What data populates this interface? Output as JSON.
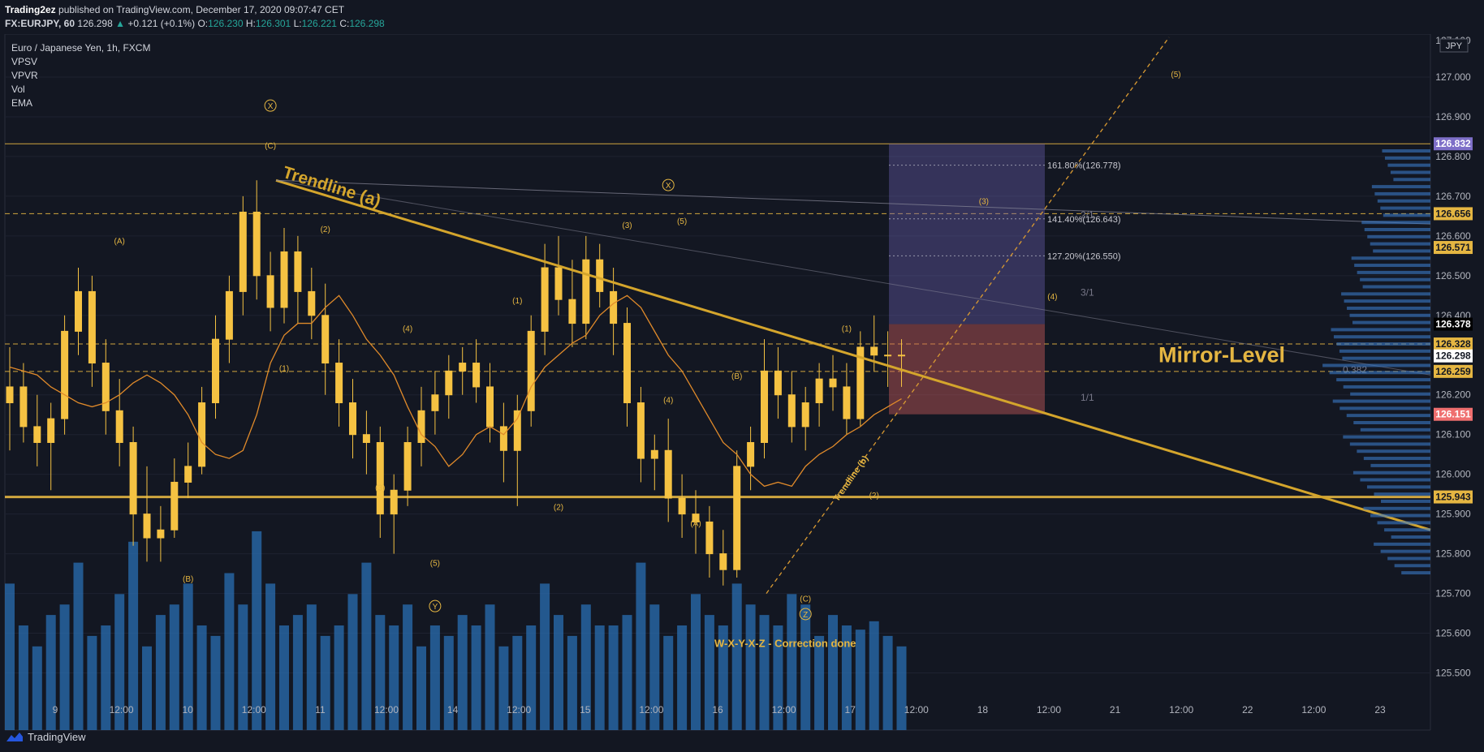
{
  "header": {
    "publisher": "Trading2ez",
    "published_text": "published on TradingView.com, December 17, 2020 09:07:47 CET",
    "symbol": "FX:EURJPY, 60",
    "last": "126.298",
    "change": "+0.121 (+0.1%)",
    "o_label": "O:",
    "o": "126.230",
    "h_label": "H:",
    "h": "126.301",
    "l_label": "L:",
    "l": "126.221",
    "c_label": "C:",
    "c": "126.298"
  },
  "legend": {
    "title": "Euro / Japanese Yen, 1h, FXCM",
    "indicators": [
      "VPSV",
      "VPVR",
      "Vol",
      "EMA"
    ]
  },
  "footer": {
    "brand": "TradingView"
  },
  "colors": {
    "background": "#131722",
    "candle": "#f5c242",
    "trendline": "#d4a52c",
    "volume": "#2a6fb3",
    "mirror": "#e5b642"
  },
  "chart_data": {
    "type": "candlestick",
    "currency": "JPY",
    "y_axis": {
      "ticks": [
        "127.000",
        "126.900",
        "126.800",
        "126.700",
        "126.600",
        "126.500",
        "126.400",
        "126.200",
        "126.100",
        "126.000",
        "125.900",
        "125.800",
        "125.700",
        "125.600",
        "125.500"
      ],
      "range": [
        125.45,
        127.1
      ],
      "top_partial_label": "127.100"
    },
    "x_axis": {
      "ticks": [
        "9",
        "12:00",
        "10",
        "12:00",
        "11",
        "12:00",
        "14",
        "12:00",
        "15",
        "12:00",
        "16",
        "12:00",
        "17",
        "12:00",
        "18",
        "12:00",
        "21",
        "12:00",
        "22",
        "12:00",
        "23"
      ]
    },
    "price_tags": [
      {
        "label": "126.832",
        "value": 126.832,
        "color": "#7e6fc8"
      },
      {
        "label": "126.656",
        "value": 126.656,
        "color": "#e5b642"
      },
      {
        "label": "126.571",
        "value": 126.571,
        "color": "#e5b642"
      },
      {
        "label": "126.378",
        "value": 126.378,
        "color": "#000000"
      },
      {
        "label": "126.328",
        "value": 126.328,
        "color": "#e5b642"
      },
      {
        "label": "126.298",
        "value": 126.298,
        "color": "#ffffff"
      },
      {
        "label": "126.259",
        "value": 126.259,
        "color": "#e5b642"
      },
      {
        "label": "126.151",
        "value": 126.151,
        "color": "#ef6f6f"
      },
      {
        "label": "125.943",
        "value": 125.943,
        "color": "#e5b642"
      }
    ],
    "horizontal_levels": [
      126.832,
      126.656,
      126.328,
      126.259,
      125.943
    ],
    "fib_levels": [
      {
        "label": "161.80%(126.778)",
        "value": 126.778
      },
      {
        "label": "141.40%(126.643)",
        "value": 126.643
      },
      {
        "label": "127.20%(126.550)",
        "value": 126.55
      }
    ],
    "annotations": {
      "trendline_a": "Trendline (a)",
      "trendline_b": "Trendline (b)",
      "mirror_level": "Mirror-Level",
      "correction": "W-X-Y-X-Z - Correction done",
      "gann": [
        "2/1",
        "3/1",
        "1/1",
        "0.382"
      ],
      "waves": [
        {
          "t": "(A)",
          "x": 8,
          "y": 126.58
        },
        {
          "t": "(B)",
          "x": 13,
          "y": 125.73
        },
        {
          "t": "(C)",
          "x": 19,
          "y": 126.82
        },
        {
          "t": "X",
          "x": 19,
          "y": 126.92,
          "circled": true
        },
        {
          "t": "(1)",
          "x": 20,
          "y": 126.26
        },
        {
          "t": "(2)",
          "x": 23,
          "y": 126.61
        },
        {
          "t": "(3)",
          "x": 27,
          "y": 125.96
        },
        {
          "t": "(4)",
          "x": 29,
          "y": 126.36
        },
        {
          "t": "(5)",
          "x": 31,
          "y": 125.77
        },
        {
          "t": "Y",
          "x": 31,
          "y": 125.66,
          "circled": true
        },
        {
          "t": "(1)",
          "x": 37,
          "y": 126.43
        },
        {
          "t": "(2)",
          "x": 40,
          "y": 125.91
        },
        {
          "t": "(3)",
          "x": 45,
          "y": 126.62
        },
        {
          "t": "(5)",
          "x": 49,
          "y": 126.63
        },
        {
          "t": "X",
          "x": 48,
          "y": 126.72,
          "circled": true
        },
        {
          "t": "(4)",
          "x": 48,
          "y": 126.18
        },
        {
          "t": "(A)",
          "x": 50,
          "y": 125.87
        },
        {
          "t": "(B)",
          "x": 53,
          "y": 126.24
        },
        {
          "t": "(C)",
          "x": 58,
          "y": 125.68
        },
        {
          "t": "Z",
          "x": 58,
          "y": 125.64,
          "circled": true
        },
        {
          "t": "(1)",
          "x": 61,
          "y": 126.36
        },
        {
          "t": "(2)",
          "x": 63,
          "y": 125.94
        },
        {
          "t": "(3)",
          "x": 71,
          "y": 126.68
        },
        {
          "t": "(4)",
          "x": 76,
          "y": 126.44
        },
        {
          "t": "(5)",
          "x": 85,
          "y": 127.0
        }
      ]
    },
    "ema": [
      126.27,
      126.26,
      126.25,
      126.22,
      126.2,
      126.18,
      126.17,
      126.18,
      126.2,
      126.23,
      126.25,
      126.23,
      126.2,
      126.15,
      126.08,
      126.05,
      126.04,
      126.06,
      126.15,
      126.28,
      126.35,
      126.38,
      126.38,
      126.42,
      126.45,
      126.4,
      126.34,
      126.3,
      126.25,
      126.17,
      126.1,
      126.07,
      126.02,
      126.05,
      126.1,
      126.12,
      126.1,
      126.14,
      126.22,
      126.27,
      126.3,
      126.33,
      126.35,
      126.4,
      126.43,
      126.45,
      126.42,
      126.36,
      126.3,
      126.26,
      126.2,
      126.14,
      126.08,
      126.05,
      126.0,
      125.97,
      125.98,
      125.97,
      126.02,
      126.05,
      126.07,
      126.1,
      126.12,
      126.15,
      126.17,
      126.19
    ],
    "ohlc": [
      [
        126.18,
        126.32,
        126.06,
        126.22
      ],
      [
        126.22,
        126.28,
        126.08,
        126.12
      ],
      [
        126.12,
        126.2,
        126.02,
        126.08
      ],
      [
        126.08,
        126.18,
        125.96,
        126.14
      ],
      [
        126.14,
        126.4,
        126.1,
        126.36
      ],
      [
        126.36,
        126.52,
        126.3,
        126.46
      ],
      [
        126.46,
        126.5,
        126.22,
        126.28
      ],
      [
        126.28,
        126.34,
        126.1,
        126.16
      ],
      [
        126.16,
        126.24,
        126.02,
        126.08
      ],
      [
        126.08,
        126.12,
        125.82,
        125.9
      ],
      [
        125.9,
        126.02,
        125.78,
        125.84
      ],
      [
        125.84,
        125.92,
        125.78,
        125.86
      ],
      [
        125.86,
        126.04,
        125.84,
        125.98
      ],
      [
        125.98,
        126.08,
        125.94,
        126.02
      ],
      [
        126.02,
        126.22,
        126.0,
        126.18
      ],
      [
        126.18,
        126.4,
        126.14,
        126.34
      ],
      [
        126.34,
        126.5,
        126.28,
        126.46
      ],
      [
        126.46,
        126.7,
        126.4,
        126.66
      ],
      [
        126.66,
        126.74,
        126.44,
        126.5
      ],
      [
        126.5,
        126.56,
        126.36,
        126.42
      ],
      [
        126.42,
        126.62,
        126.38,
        126.56
      ],
      [
        126.56,
        126.6,
        126.38,
        126.46
      ],
      [
        126.46,
        126.52,
        126.34,
        126.4
      ],
      [
        126.4,
        126.48,
        126.2,
        126.28
      ],
      [
        126.28,
        126.34,
        126.12,
        126.18
      ],
      [
        126.18,
        126.24,
        126.04,
        126.1
      ],
      [
        126.1,
        126.16,
        126.0,
        126.08
      ],
      [
        126.08,
        126.12,
        125.84,
        125.9
      ],
      [
        125.9,
        126.0,
        125.8,
        125.96
      ],
      [
        125.96,
        126.12,
        125.92,
        126.08
      ],
      [
        126.08,
        126.22,
        126.02,
        126.16
      ],
      [
        126.16,
        126.26,
        126.1,
        126.2
      ],
      [
        126.2,
        126.3,
        126.14,
        126.26
      ],
      [
        126.26,
        126.32,
        126.2,
        126.28
      ],
      [
        126.28,
        126.34,
        126.18,
        126.22
      ],
      [
        126.22,
        126.28,
        126.08,
        126.12
      ],
      [
        126.12,
        126.18,
        125.98,
        126.06
      ],
      [
        126.06,
        126.2,
        125.92,
        126.16
      ],
      [
        126.16,
        126.4,
        126.12,
        126.36
      ],
      [
        126.36,
        126.58,
        126.3,
        126.52
      ],
      [
        126.52,
        126.6,
        126.4,
        126.44
      ],
      [
        126.44,
        126.54,
        126.32,
        126.38
      ],
      [
        126.38,
        126.6,
        126.34,
        126.54
      ],
      [
        126.54,
        126.58,
        126.42,
        126.46
      ],
      [
        126.46,
        126.52,
        126.3,
        126.38
      ],
      [
        126.38,
        126.42,
        126.12,
        126.18
      ],
      [
        126.18,
        126.22,
        125.98,
        126.04
      ],
      [
        126.04,
        126.1,
        125.96,
        126.06
      ],
      [
        126.06,
        126.14,
        125.88,
        125.94
      ],
      [
        125.94,
        126.0,
        125.84,
        125.9
      ],
      [
        125.9,
        125.96,
        125.8,
        125.88
      ],
      [
        125.88,
        125.92,
        125.74,
        125.8
      ],
      [
        125.8,
        125.86,
        125.72,
        125.76
      ],
      [
        125.76,
        126.06,
        125.74,
        126.02
      ],
      [
        126.02,
        126.12,
        125.96,
        126.08
      ],
      [
        126.08,
        126.34,
        126.04,
        126.26
      ],
      [
        126.26,
        126.32,
        126.14,
        126.2
      ],
      [
        126.2,
        126.26,
        126.08,
        126.12
      ],
      [
        126.12,
        126.22,
        126.06,
        126.18
      ],
      [
        126.18,
        126.28,
        126.12,
        126.24
      ],
      [
        126.24,
        126.3,
        126.16,
        126.22
      ],
      [
        126.22,
        126.28,
        126.1,
        126.14
      ],
      [
        126.14,
        126.36,
        126.12,
        126.32
      ],
      [
        126.32,
        126.4,
        126.26,
        126.3
      ],
      [
        126.3,
        126.36,
        126.22,
        126.3
      ],
      [
        126.3,
        126.34,
        126.22,
        126.3
      ]
    ],
    "volume": [
      0.7,
      0.5,
      0.4,
      0.55,
      0.6,
      0.8,
      0.45,
      0.5,
      0.65,
      0.9,
      0.4,
      0.55,
      0.6,
      0.7,
      0.5,
      0.45,
      0.75,
      0.6,
      0.95,
      0.7,
      0.5,
      0.55,
      0.6,
      0.45,
      0.5,
      0.65,
      0.8,
      0.55,
      0.5,
      0.6,
      0.4,
      0.5,
      0.45,
      0.55,
      0.5,
      0.6,
      0.4,
      0.45,
      0.5,
      0.7,
      0.55,
      0.45,
      0.6,
      0.5,
      0.5,
      0.55,
      0.8,
      0.6,
      0.45,
      0.5,
      0.65,
      0.55,
      0.5,
      0.7,
      0.6,
      0.55,
      0.5,
      0.65,
      0.6,
      0.45,
      0.55,
      0.5,
      0.48,
      0.52,
      0.45,
      0.4
    ]
  }
}
